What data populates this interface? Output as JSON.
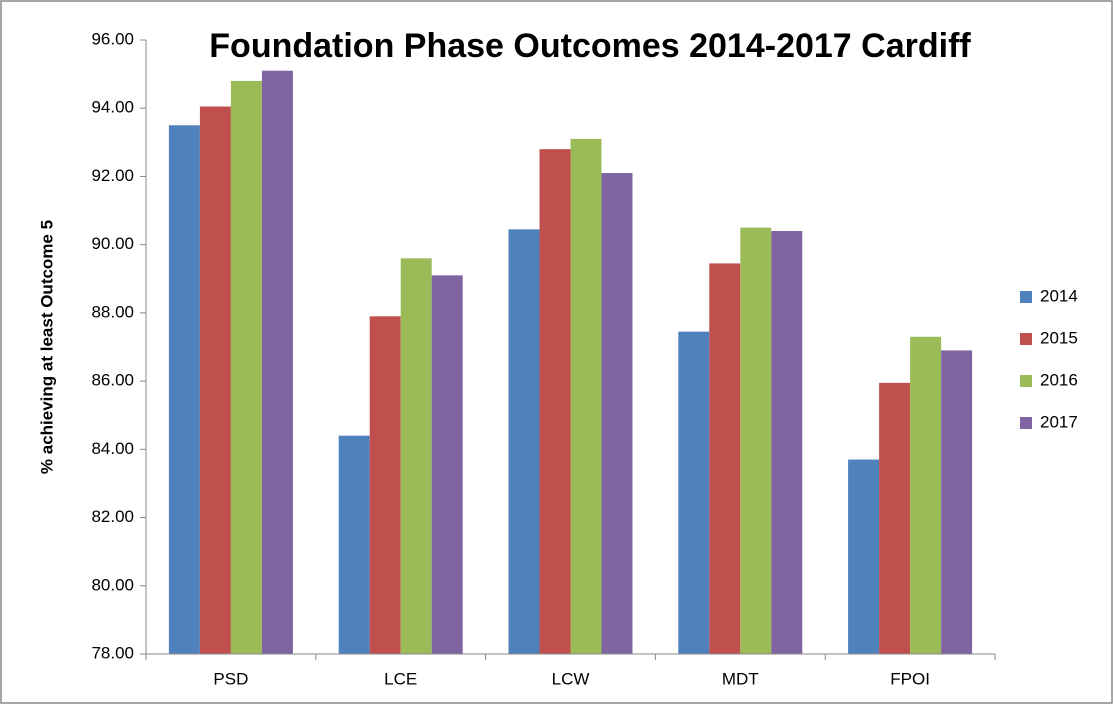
{
  "chart_data": {
    "type": "bar",
    "title": "Foundation Phase Outcomes 2014-2017 Cardiff",
    "y_label": "% achieving at least Outcome 5",
    "categories": [
      "PSD",
      "LCE",
      "LCW",
      "MDT",
      "FPOI"
    ],
    "series": [
      {
        "name": "2014",
        "color": "#4f81bd",
        "values": [
          93.5,
          84.4,
          90.45,
          87.45,
          83.7
        ]
      },
      {
        "name": "2015",
        "color": "#c0504d",
        "values": [
          94.05,
          87.9,
          92.8,
          89.45,
          85.95
        ]
      },
      {
        "name": "2016",
        "color": "#9bbb59",
        "values": [
          94.8,
          89.6,
          93.1,
          90.5,
          87.3
        ]
      },
      {
        "name": "2017",
        "color": "#8064a2",
        "values": [
          95.1,
          89.1,
          92.1,
          90.4,
          86.9
        ]
      }
    ],
    "ylim": [
      78,
      96
    ],
    "yticks": [
      {
        "value": 78,
        "label": "78.00"
      },
      {
        "value": 80,
        "label": "80.00"
      },
      {
        "value": 82,
        "label": "82.00"
      },
      {
        "value": 84,
        "label": "84.00"
      },
      {
        "value": 86,
        "label": "86.00"
      },
      {
        "value": 88,
        "label": "88.00"
      },
      {
        "value": 90,
        "label": "90.00"
      },
      {
        "value": 92,
        "label": "92.00"
      },
      {
        "value": 94,
        "label": "94.00"
      },
      {
        "value": 96,
        "label": "96.00"
      }
    ],
    "legend": "right"
  }
}
